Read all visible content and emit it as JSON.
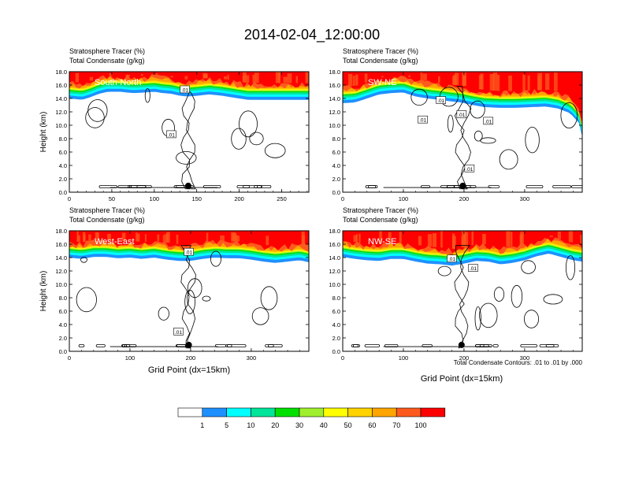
{
  "title": "2014-02-04_12:00:00",
  "colors": {
    "palette": [
      "#ffffff",
      "#1e90ff",
      "#00ffff",
      "#00e59a",
      "#00e000",
      "#a0ef2e",
      "#ffff00",
      "#ffd200",
      "#ffa500",
      "#ff5a1e",
      "#ff0000"
    ],
    "contour": "#000000",
    "frame": "#000000"
  },
  "colorbar": {
    "labels": [
      "1",
      "5",
      "10",
      "20",
      "30",
      "40",
      "50",
      "60",
      "70",
      "100"
    ]
  },
  "footnote": "Total Condensate Contours: .01 to .01 by .000",
  "xlabel": "Grid Point (dx=15km)",
  "chart_data": [
    {
      "type": "heatmap",
      "name": "south-north",
      "title": "Stratosphere Tracer   (%)",
      "subtitle": "Total Condensate   (g/kg)",
      "panel_label": "South-North",
      "ylabel": "Height (km)",
      "xlabel": "",
      "xlim": [
        0,
        282
      ],
      "ylim": [
        0,
        18
      ],
      "xticks": [
        "0",
        "50",
        "100",
        "150",
        "200",
        "250"
      ],
      "xtick_values": [
        0,
        50,
        100,
        150,
        200,
        250
      ],
      "yticks": [
        "0.0",
        "2.0",
        "4.0",
        "6.0",
        "8.0",
        "10.0",
        "12.0",
        "14.0",
        "16.0",
        "18.0"
      ],
      "tracer_base": [
        [
          0,
          15.2
        ],
        [
          15,
          15.0
        ],
        [
          25,
          15.4
        ],
        [
          35,
          15.9
        ],
        [
          45,
          16.2
        ],
        [
          60,
          16.2
        ],
        [
          75,
          16.0
        ],
        [
          90,
          16.1
        ],
        [
          100,
          16.2
        ],
        [
          110,
          16.0
        ],
        [
          120,
          15.9
        ],
        [
          130,
          15.6
        ],
        [
          140,
          15.5
        ],
        [
          150,
          15.6
        ],
        [
          165,
          15.8
        ],
        [
          180,
          15.6
        ],
        [
          195,
          15.3
        ],
        [
          210,
          15.0
        ],
        [
          225,
          15.0
        ],
        [
          240,
          15.0
        ],
        [
          255,
          15.0
        ],
        [
          270,
          15.0
        ],
        [
          282,
          15.0
        ]
      ],
      "contour_label_values": [
        ".01",
        ".01"
      ],
      "contour_label_points": [
        [
          136,
          15.3
        ],
        [
          120,
          8.6
        ]
      ],
      "marker_x": 140
    },
    {
      "type": "heatmap",
      "name": "sw-ne",
      "title": "Stratosphere Tracer   (%)",
      "subtitle": "Total Condensate   (g/kg)",
      "panel_label": "SW-NE",
      "ylabel": "",
      "xlabel": "",
      "xlim": [
        0,
        395
      ],
      "ylim": [
        0,
        18
      ],
      "xticks": [
        "0",
        "100",
        "200",
        "300"
      ],
      "xtick_values": [
        0,
        100,
        200,
        300
      ],
      "yticks": [
        "0.0",
        "2.0",
        "4.0",
        "6.0",
        "8.0",
        "10.0",
        "12.0",
        "14.0",
        "16.0",
        "18.0"
      ],
      "tracer_base": [
        [
          0,
          14.5
        ],
        [
          20,
          14.6
        ],
        [
          40,
          15.2
        ],
        [
          60,
          15.8
        ],
        [
          80,
          16.0
        ],
        [
          100,
          16.1
        ],
        [
          120,
          15.5
        ],
        [
          140,
          15.2
        ],
        [
          160,
          15.0
        ],
        [
          175,
          14.8
        ],
        [
          195,
          14.6
        ],
        [
          215,
          14.2
        ],
        [
          235,
          13.9
        ],
        [
          260,
          13.8
        ],
        [
          285,
          13.8
        ],
        [
          310,
          13.9
        ],
        [
          335,
          14.0
        ],
        [
          355,
          13.7
        ],
        [
          375,
          13.0
        ],
        [
          390,
          11.5
        ],
        [
          395,
          9.5
        ]
      ],
      "contour_label_values": [
        ".01",
        ".01",
        ".01",
        ".01",
        ".01"
      ],
      "contour_label_points": [
        [
          162,
          13.7
        ],
        [
          132,
          10.8
        ],
        [
          196,
          11.6
        ],
        [
          240,
          10.6
        ],
        [
          209,
          3.5
        ]
      ],
      "marker_x": 198
    },
    {
      "type": "heatmap",
      "name": "west-east",
      "title": "Stratosphere Tracer   (%)",
      "subtitle": "Total Condensate   (g/kg)",
      "panel_label": "West-East",
      "ylabel": "Height (km)",
      "xlabel": "Grid Point (dx=15km)",
      "xlim": [
        0,
        395
      ],
      "ylim": [
        0,
        18
      ],
      "xticks": [
        "0",
        "100",
        "200",
        "300"
      ],
      "xtick_values": [
        0,
        100,
        200,
        300
      ],
      "yticks": [
        "0.0",
        "2.0",
        "4.0",
        "6.0",
        "8.0",
        "10.0",
        "12.0",
        "14.0",
        "16.0",
        "18.0"
      ],
      "tracer_base": [
        [
          0,
          15.2
        ],
        [
          20,
          15.0
        ],
        [
          40,
          15.3
        ],
        [
          60,
          15.3
        ],
        [
          80,
          15.1
        ],
        [
          100,
          15.2
        ],
        [
          120,
          15.0
        ],
        [
          140,
          15.2
        ],
        [
          160,
          14.9
        ],
        [
          180,
          14.7
        ],
        [
          200,
          14.7
        ],
        [
          220,
          15.0
        ],
        [
          240,
          15.2
        ],
        [
          260,
          15.1
        ],
        [
          280,
          15.1
        ],
        [
          300,
          14.9
        ],
        [
          320,
          14.6
        ],
        [
          340,
          14.4
        ],
        [
          360,
          14.6
        ],
        [
          380,
          14.8
        ],
        [
          395,
          14.5
        ]
      ],
      "contour_label_values": [
        ".01",
        ".01"
      ],
      "contour_label_points": [
        [
          197,
          14.8
        ],
        [
          180,
          2.9
        ]
      ],
      "marker_x": 197
    },
    {
      "type": "heatmap",
      "name": "nw-se",
      "title": "Stratosphere Tracer   (%)",
      "subtitle": "Total Condensate   (g/kg)",
      "panel_label": "NW-SE",
      "ylabel": "",
      "xlabel": "",
      "xlim": [
        0,
        395
      ],
      "ylim": [
        0,
        18
      ],
      "xticks": [
        "0",
        "100",
        "200",
        "300"
      ],
      "xtick_values": [
        0,
        100,
        200,
        300
      ],
      "yticks": [
        "0.0",
        "2.0",
        "4.0",
        "6.0",
        "8.0",
        "10.0",
        "12.0",
        "14.0",
        "16.0",
        "18.0"
      ],
      "tracer_base": [
        [
          0,
          15.3
        ],
        [
          20,
          15.0
        ],
        [
          40,
          14.8
        ],
        [
          60,
          14.7
        ],
        [
          80,
          15.0
        ],
        [
          100,
          15.0
        ],
        [
          120,
          14.6
        ],
        [
          140,
          14.3
        ],
        [
          160,
          14.2
        ],
        [
          180,
          14.0
        ],
        [
          200,
          14.3
        ],
        [
          220,
          14.7
        ],
        [
          240,
          14.6
        ],
        [
          260,
          14.2
        ],
        [
          280,
          14.4
        ],
        [
          300,
          14.8
        ],
        [
          320,
          15.4
        ],
        [
          340,
          15.8
        ],
        [
          360,
          15.3
        ],
        [
          380,
          14.8
        ],
        [
          395,
          14.6
        ]
      ],
      "contour_label_values": [
        ".01",
        ".01"
      ],
      "contour_label_points": [
        [
          180,
          13.8
        ],
        [
          215,
          12.4
        ]
      ],
      "marker_x": 196
    }
  ]
}
